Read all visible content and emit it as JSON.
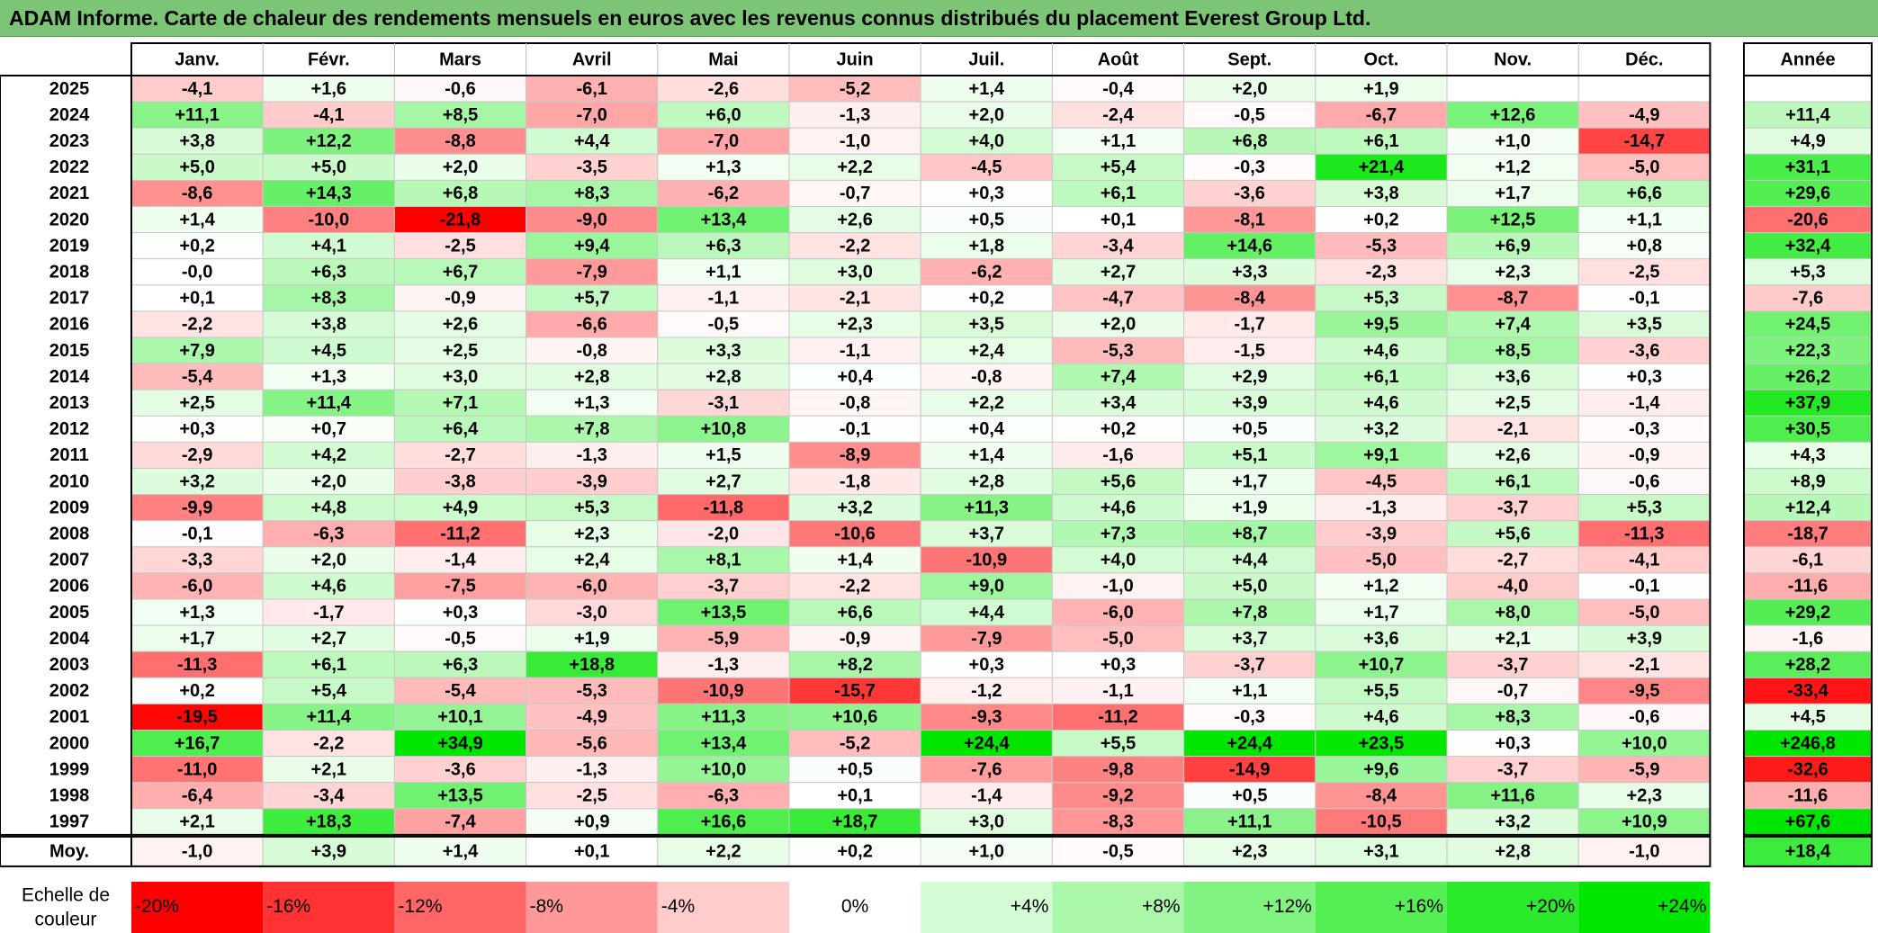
{
  "title": "ADAM Informe. Carte de chaleur des rendements mensuels en euros avec les revenus connus distribués du placement Everest Group Ltd.",
  "chart_data": {
    "type": "heatmap",
    "title": "ADAM Informe. Carte de chaleur des rendements mensuels en euros avec les revenus connus distribués du placement Everest Group Ltd.",
    "columns": [
      "Janv.",
      "Févr.",
      "Mars",
      "Avril",
      "Mai",
      "Juin",
      "Juil.",
      "Août",
      "Sept.",
      "Oct.",
      "Nov.",
      "Déc."
    ],
    "year_column": "Année",
    "rows": [
      {
        "year": "2025",
        "values": [
          "-4,1",
          "+1,6",
          "-0,6",
          "-6,1",
          "-2,6",
          "-5,2",
          "+1,4",
          "-0,4",
          "+2,0",
          "+1,9",
          "",
          ""
        ],
        "annual": ""
      },
      {
        "year": "2024",
        "values": [
          "+11,1",
          "-4,1",
          "+8,5",
          "-7,0",
          "+6,0",
          "-1,3",
          "+2,0",
          "-2,4",
          "-0,5",
          "-6,7",
          "+12,6",
          "-4,9"
        ],
        "annual": "+11,4"
      },
      {
        "year": "2023",
        "values": [
          "+3,8",
          "+12,2",
          "-8,8",
          "+4,4",
          "-7,0",
          "-1,0",
          "+4,0",
          "+1,1",
          "+6,8",
          "+6,1",
          "+1,0",
          "-14,7"
        ],
        "annual": "+4,9"
      },
      {
        "year": "2022",
        "values": [
          "+5,0",
          "+5,0",
          "+2,0",
          "-3,5",
          "+1,3",
          "+2,2",
          "-4,5",
          "+5,4",
          "-0,3",
          "+21,4",
          "+1,2",
          "-5,0"
        ],
        "annual": "+31,1"
      },
      {
        "year": "2021",
        "values": [
          "-8,6",
          "+14,3",
          "+6,8",
          "+8,3",
          "-6,2",
          "-0,7",
          "+0,3",
          "+6,1",
          "-3,6",
          "+3,8",
          "+1,7",
          "+6,6"
        ],
        "annual": "+29,6"
      },
      {
        "year": "2020",
        "values": [
          "+1,4",
          "-10,0",
          "-21,8",
          "-9,0",
          "+13,4",
          "+2,6",
          "+0,5",
          "+0,1",
          "-8,1",
          "+0,2",
          "+12,5",
          "+1,1"
        ],
        "annual": "-20,6"
      },
      {
        "year": "2019",
        "values": [
          "+0,2",
          "+4,1",
          "-2,5",
          "+9,4",
          "+6,3",
          "-2,2",
          "+1,8",
          "-3,4",
          "+14,6",
          "-5,3",
          "+6,9",
          "+0,8"
        ],
        "annual": "+32,4"
      },
      {
        "year": "2018",
        "values": [
          "-0,0",
          "+6,3",
          "+6,7",
          "-7,9",
          "+1,1",
          "+3,0",
          "-6,2",
          "+2,7",
          "+3,3",
          "-2,3",
          "+2,3",
          "-2,5"
        ],
        "annual": "+5,3"
      },
      {
        "year": "2017",
        "values": [
          "+0,1",
          "+8,3",
          "-0,9",
          "+5,7",
          "-1,1",
          "-2,1",
          "+0,2",
          "-4,7",
          "-8,4",
          "+5,3",
          "-8,7",
          "-0,1"
        ],
        "annual": "-7,6"
      },
      {
        "year": "2016",
        "values": [
          "-2,2",
          "+3,8",
          "+2,6",
          "-6,6",
          "-0,5",
          "+2,3",
          "+3,5",
          "+2,0",
          "-1,7",
          "+9,5",
          "+7,4",
          "+3,5"
        ],
        "annual": "+24,5"
      },
      {
        "year": "2015",
        "values": [
          "+7,9",
          "+4,5",
          "+2,5",
          "-0,8",
          "+3,3",
          "-1,1",
          "+2,4",
          "-5,3",
          "-1,5",
          "+4,6",
          "+8,5",
          "-3,6"
        ],
        "annual": "+22,3"
      },
      {
        "year": "2014",
        "values": [
          "-5,4",
          "+1,3",
          "+3,0",
          "+2,8",
          "+2,8",
          "+0,4",
          "-0,8",
          "+7,4",
          "+2,9",
          "+6,1",
          "+3,6",
          "+0,3"
        ],
        "annual": "+26,2"
      },
      {
        "year": "2013",
        "values": [
          "+2,5",
          "+11,4",
          "+7,1",
          "+1,3",
          "-3,1",
          "-0,8",
          "+2,2",
          "+3,4",
          "+3,9",
          "+4,6",
          "+2,5",
          "-1,4"
        ],
        "annual": "+37,9"
      },
      {
        "year": "2012",
        "values": [
          "+0,3",
          "+0,7",
          "+6,4",
          "+7,8",
          "+10,8",
          "-0,1",
          "+0,4",
          "+0,2",
          "+0,5",
          "+3,2",
          "-2,1",
          "-0,3"
        ],
        "annual": "+30,5"
      },
      {
        "year": "2011",
        "values": [
          "-2,9",
          "+4,2",
          "-2,7",
          "-1,3",
          "+1,5",
          "-8,9",
          "+1,4",
          "-1,6",
          "+5,1",
          "+9,1",
          "+2,6",
          "-0,9"
        ],
        "annual": "+4,3"
      },
      {
        "year": "2010",
        "values": [
          "+3,2",
          "+2,0",
          "-3,8",
          "-3,9",
          "+2,7",
          "-1,8",
          "+2,8",
          "+5,6",
          "+1,7",
          "-4,5",
          "+6,1",
          "-0,6"
        ],
        "annual": "+8,9"
      },
      {
        "year": "2009",
        "values": [
          "-9,9",
          "+4,8",
          "+4,9",
          "+5,3",
          "-11,8",
          "+3,2",
          "+11,3",
          "+4,6",
          "+1,9",
          "-1,3",
          "-3,7",
          "+5,3"
        ],
        "annual": "+12,4"
      },
      {
        "year": "2008",
        "values": [
          "-0,1",
          "-6,3",
          "-11,2",
          "+2,3",
          "-2,0",
          "-10,6",
          "+3,7",
          "+7,3",
          "+8,7",
          "-3,9",
          "+5,6",
          "-11,3"
        ],
        "annual": "-18,7"
      },
      {
        "year": "2007",
        "values": [
          "-3,3",
          "+2,0",
          "-1,4",
          "+2,4",
          "+8,1",
          "+1,4",
          "-10,9",
          "+4,0",
          "+4,4",
          "-5,0",
          "-2,7",
          "-4,1"
        ],
        "annual": "-6,1"
      },
      {
        "year": "2006",
        "values": [
          "-6,0",
          "+4,6",
          "-7,5",
          "-6,0",
          "-3,7",
          "-2,2",
          "+9,0",
          "-1,0",
          "+5,0",
          "+1,2",
          "-4,0",
          "-0,1"
        ],
        "annual": "-11,6"
      },
      {
        "year": "2005",
        "values": [
          "+1,3",
          "-1,7",
          "+0,3",
          "-3,0",
          "+13,5",
          "+6,6",
          "+4,4",
          "-6,0",
          "+7,8",
          "+1,7",
          "+8,0",
          "-5,0"
        ],
        "annual": "+29,2"
      },
      {
        "year": "2004",
        "values": [
          "+1,7",
          "+2,7",
          "-0,5",
          "+1,9",
          "-5,9",
          "-0,9",
          "-7,9",
          "-5,0",
          "+3,7",
          "+3,6",
          "+2,1",
          "+3,9"
        ],
        "annual": "-1,6"
      },
      {
        "year": "2003",
        "values": [
          "-11,3",
          "+6,1",
          "+6,3",
          "+18,8",
          "-1,3",
          "+8,2",
          "+0,3",
          "+0,3",
          "-3,7",
          "+10,7",
          "-3,7",
          "-2,1"
        ],
        "annual": "+28,2"
      },
      {
        "year": "2002",
        "values": [
          "+0,2",
          "+5,4",
          "-5,4",
          "-5,3",
          "-10,9",
          "-15,7",
          "-1,2",
          "-1,1",
          "+1,1",
          "+5,5",
          "-0,7",
          "-9,5"
        ],
        "annual": "-33,4"
      },
      {
        "year": "2001",
        "values": [
          "-19,5",
          "+11,4",
          "+10,1",
          "-4,9",
          "+11,3",
          "+10,6",
          "-9,3",
          "-11,2",
          "-0,3",
          "+4,6",
          "+8,3",
          "-0,6"
        ],
        "annual": "+4,5"
      },
      {
        "year": "2000",
        "values": [
          "+16,7",
          "-2,2",
          "+34,9",
          "-5,6",
          "+13,4",
          "-5,2",
          "+24,4",
          "+5,5",
          "+24,4",
          "+23,5",
          "+0,3",
          "+10,0"
        ],
        "annual": "+246,8"
      },
      {
        "year": "1999",
        "values": [
          "-11,0",
          "+2,1",
          "-3,6",
          "-1,3",
          "+10,0",
          "+0,5",
          "-7,6",
          "-9,8",
          "-14,9",
          "+9,6",
          "-3,7",
          "-5,9"
        ],
        "annual": "-32,6"
      },
      {
        "year": "1998",
        "values": [
          "-6,4",
          "-3,4",
          "+13,5",
          "-2,5",
          "-6,3",
          "+0,1",
          "-1,4",
          "-9,2",
          "+0,5",
          "-8,4",
          "+11,6",
          "+2,3"
        ],
        "annual": "-11,6"
      },
      {
        "year": "1997",
        "values": [
          "+2,1",
          "+18,3",
          "-7,4",
          "+0,9",
          "+16,6",
          "+18,7",
          "+3,0",
          "-8,3",
          "+11,1",
          "-10,5",
          "+3,2",
          "+10,9"
        ],
        "annual": "+67,6"
      }
    ],
    "average": {
      "label": "Moy.",
      "values": [
        "-1,0",
        "+3,9",
        "+1,4",
        "+0,1",
        "+2,2",
        "+0,2",
        "+1,0",
        "-0,5",
        "+2,3",
        "+3,1",
        "+2,8",
        "-1,0"
      ],
      "annual": "+18,4"
    },
    "scale": {
      "label_line1": "Echelle de",
      "label_line2": "couleur",
      "steps": [
        "-20%",
        "-16%",
        "-12%",
        "-8%",
        "-4%",
        "0%",
        "+4%",
        "+8%",
        "+12%",
        "+16%",
        "+20%",
        "+24%"
      ]
    },
    "colors": {
      "negative_max": "#ff0000",
      "neutral": "#ffffff",
      "positive_max": "#00e600",
      "title_bar": "#7cc576"
    }
  }
}
